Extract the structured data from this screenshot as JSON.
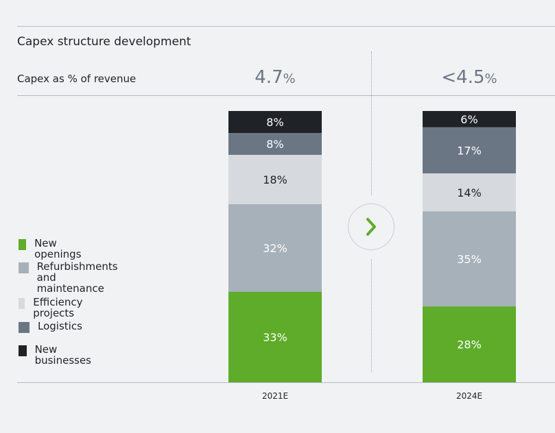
{
  "header": {
    "title": "Capex structure development",
    "row_label": "Capex as % of revenue"
  },
  "metrics": [
    {
      "value": "4.7",
      "unit": "%"
    },
    {
      "value": "<4.5",
      "unit": "%"
    }
  ],
  "colors": {
    "new_openings": "#5eac2a",
    "refurbishments": "#a7b1ba",
    "efficiency": "#d6d9dd",
    "logistics": "#6a7684",
    "new_businesses": "#1f2226",
    "background": "#f1f2f4",
    "arrow": "#5eac2a"
  },
  "legend": [
    {
      "label": "New openings",
      "color": "#5eac2a"
    },
    {
      "label": "Refurbishments\nand maintenance",
      "color": "#a7b1ba"
    },
    {
      "label": "Efficiency projects",
      "color": "#d6d9dd"
    },
    {
      "label": "Logistics",
      "color": "#6a7684"
    },
    {
      "label": "New businesses",
      "color": "#1f2226"
    }
  ],
  "arrow_icon": "chevron-right-icon",
  "chart_data": {
    "type": "bar",
    "stacked": true,
    "categories": [
      "2021E",
      "2024E"
    ],
    "series": [
      {
        "name": "New openings",
        "values": [
          33,
          28
        ],
        "labels": [
          "33%",
          "28%"
        ],
        "color": "#5eac2a",
        "text_color": "#ffffff"
      },
      {
        "name": "Refurbishments and maintenance",
        "values": [
          32,
          35
        ],
        "labels": [
          "32%",
          "35%"
        ],
        "color": "#a7b1ba",
        "text_color": "#ffffff"
      },
      {
        "name": "Efficiency projects",
        "values": [
          18,
          14
        ],
        "labels": [
          "18%",
          "14%"
        ],
        "color": "#d6d9dd",
        "text_color": "#1e2125"
      },
      {
        "name": "Logistics",
        "values": [
          8,
          17
        ],
        "labels": [
          "8%",
          "17%"
        ],
        "color": "#6a7684",
        "text_color": "#ffffff"
      },
      {
        "name": "New businesses",
        "values": [
          8,
          6
        ],
        "labels": [
          "8%",
          "6%"
        ],
        "color": "#1f2226",
        "text_color": "#ffffff"
      }
    ],
    "xlabel": "",
    "ylabel": "",
    "grid": false,
    "legend_position": "left"
  }
}
